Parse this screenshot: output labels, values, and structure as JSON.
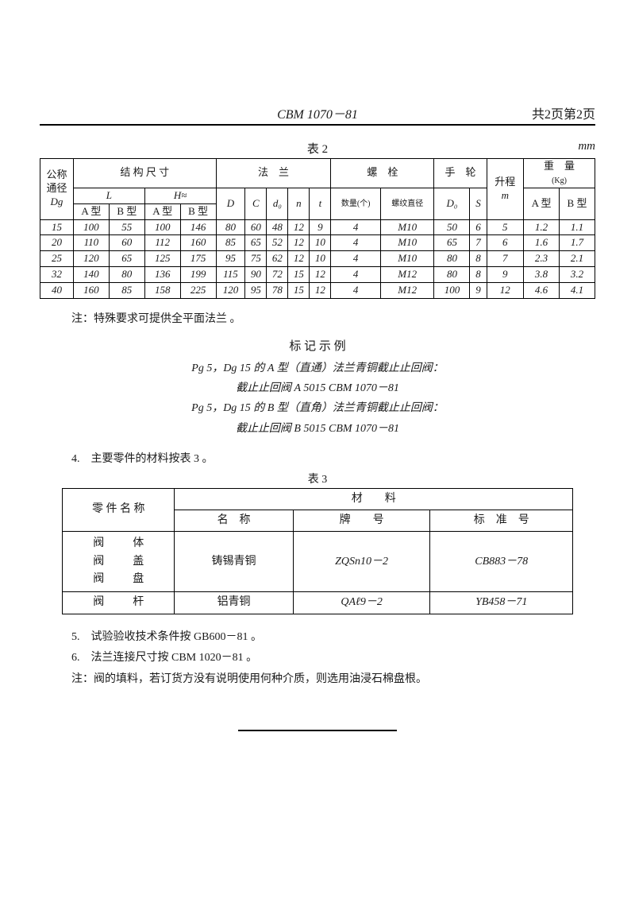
{
  "header": {
    "doc_number": "CBM 1070－81",
    "page_info": "共2页第2页"
  },
  "table2": {
    "caption": "表 2",
    "unit": "mm",
    "top_headers": {
      "dg": "公称通径",
      "dg_sym": "Dg",
      "struct": "结 构 尺 寸",
      "flange": "法　兰",
      "bolt": "螺　栓",
      "handwheel": "手　轮",
      "lift": "升程",
      "weight": "重　量",
      "weight_unit": "(Kg)"
    },
    "mid_headers": {
      "L": "L",
      "H": "H≈",
      "A": "A 型",
      "B": "B 型",
      "D": "D",
      "C": "C",
      "d0": "d₀",
      "n": "n",
      "t": "t",
      "count": "数量(个)",
      "thread": "螺纹直径",
      "D0": "D₀",
      "S": "S",
      "m": "m"
    },
    "rows": [
      {
        "dg": "15",
        "LA": "100",
        "LB": "55",
        "HA": "100",
        "HB": "146",
        "D": "80",
        "C": "60",
        "d0": "48",
        "n": "12",
        "t": "9",
        "cnt": "4",
        "thr": "M10",
        "D0": "50",
        "S": "6",
        "m": "5",
        "wA": "1.2",
        "wB": "1.1"
      },
      {
        "dg": "20",
        "LA": "110",
        "LB": "60",
        "HA": "112",
        "HB": "160",
        "D": "85",
        "C": "65",
        "d0": "52",
        "n": "12",
        "t": "10",
        "cnt": "4",
        "thr": "M10",
        "D0": "65",
        "S": "7",
        "m": "6",
        "wA": "1.6",
        "wB": "1.7"
      },
      {
        "dg": "25",
        "LA": "120",
        "LB": "65",
        "HA": "125",
        "HB": "175",
        "D": "95",
        "C": "75",
        "d0": "62",
        "n": "12",
        "t": "10",
        "cnt": "4",
        "thr": "M10",
        "D0": "80",
        "S": "8",
        "m": "7",
        "wA": "2.3",
        "wB": "2.1"
      },
      {
        "dg": "32",
        "LA": "140",
        "LB": "80",
        "HA": "136",
        "HB": "199",
        "D": "115",
        "C": "90",
        "d0": "72",
        "n": "15",
        "t": "12",
        "cnt": "4",
        "thr": "M12",
        "D0": "80",
        "S": "8",
        "m": "9",
        "wA": "3.8",
        "wB": "3.2"
      },
      {
        "dg": "40",
        "LA": "160",
        "LB": "85",
        "HA": "158",
        "HB": "225",
        "D": "120",
        "C": "95",
        "d0": "78",
        "n": "15",
        "t": "12",
        "cnt": "4",
        "thr": "M12",
        "D0": "100",
        "S": "9",
        "m": "12",
        "wA": "4.6",
        "wB": "4.1"
      }
    ]
  },
  "note_after_t2": "注：特殊要求可提供全平面法兰 。",
  "marking": {
    "title": "标 记 示 例",
    "line1": "Pg 5，Dg 15 的 A 型（直通）法兰青铜截止止回阀：",
    "line2": "截止止回阀 A 5015 CBM 1070－81",
    "line3": "Pg 5，Dg 15 的 B 型（直角）法兰青铜截止止回阀：",
    "line4": "截止止回阀 B 5015 CBM 1070－81"
  },
  "section4": "4.　主要零件的材料按表 3 。",
  "table3": {
    "caption": "表 3",
    "headers": {
      "part": "零 件 名 称",
      "material": "材　　料",
      "mat_name": "名　称",
      "grade": "牌　　号",
      "std": "标　准　号"
    },
    "parts_block": [
      {
        "k": "阀",
        "v": "体"
      },
      {
        "k": "阀",
        "v": "盖"
      },
      {
        "k": "阀",
        "v": "盘"
      }
    ],
    "row1": {
      "mat": "铸锡青铜",
      "grade": "ZQSn10－2",
      "std": "CB883－78"
    },
    "row2": {
      "part_k": "阀",
      "part_v": "杆",
      "mat": "铝青铜",
      "grade": "QAℓ9－2",
      "std": "YB458－71"
    }
  },
  "notes56": {
    "n5": "5.　试验验收技术条件按 GB600－81 。",
    "n6": "6.　法兰连接尺寸按 CBM 1020－81 。",
    "nn": "注：阀的填料，若订货方没有说明使用何种介质，则选用油浸石棉盘根。"
  }
}
